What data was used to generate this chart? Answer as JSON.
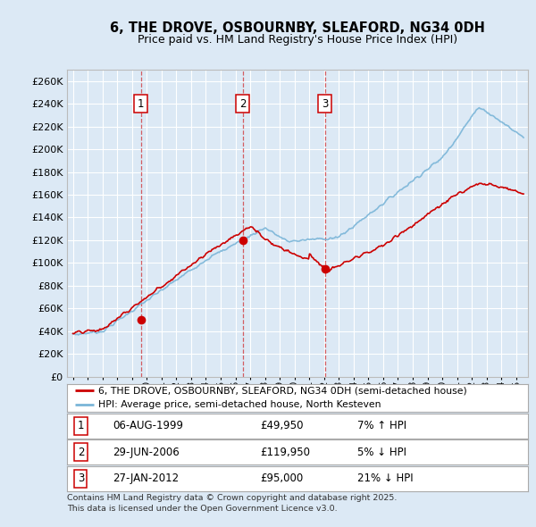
{
  "title_line1": "6, THE DROVE, OSBOURNBY, SLEAFORD, NG34 0DH",
  "title_line2": "Price paid vs. HM Land Registry's House Price Index (HPI)",
  "background_color": "#dce9f5",
  "plot_bg_color": "#dce9f5",
  "grid_color": "#ffffff",
  "hpi_color": "#7ab5d8",
  "price_color": "#cc0000",
  "ylim": [
    0,
    270000
  ],
  "ytick_vals": [
    0,
    20000,
    40000,
    60000,
    80000,
    100000,
    120000,
    140000,
    160000,
    180000,
    200000,
    220000,
    240000,
    260000
  ],
  "xlim_min": 1994.6,
  "xlim_max": 2025.8,
  "xtick_years": [
    1995,
    1996,
    1997,
    1998,
    1999,
    2000,
    2001,
    2002,
    2003,
    2004,
    2005,
    2006,
    2007,
    2008,
    2009,
    2010,
    2011,
    2012,
    2013,
    2014,
    2015,
    2016,
    2017,
    2018,
    2019,
    2020,
    2021,
    2022,
    2023,
    2024,
    2025
  ],
  "transactions": [
    {
      "num": 1,
      "date": "06-AUG-1999",
      "price": 49950,
      "year": 1999.59,
      "hpi_pct": "7% ↑ HPI"
    },
    {
      "num": 2,
      "date": "29-JUN-2006",
      "price": 119950,
      "year": 2006.49,
      "hpi_pct": "5% ↓ HPI"
    },
    {
      "num": 3,
      "date": "27-JAN-2012",
      "price": 95000,
      "year": 2012.07,
      "hpi_pct": "21% ↓ HPI"
    }
  ],
  "legend_label_price": "6, THE DROVE, OSBOURNBY, SLEAFORD, NG34 0DH (semi-detached house)",
  "legend_label_hpi": "HPI: Average price, semi-detached house, North Kesteven",
  "footer": "Contains HM Land Registry data © Crown copyright and database right 2025.\nThis data is licensed under the Open Government Licence v3.0.",
  "fig_width": 6.0,
  "fig_height": 5.9,
  "dpi": 100
}
